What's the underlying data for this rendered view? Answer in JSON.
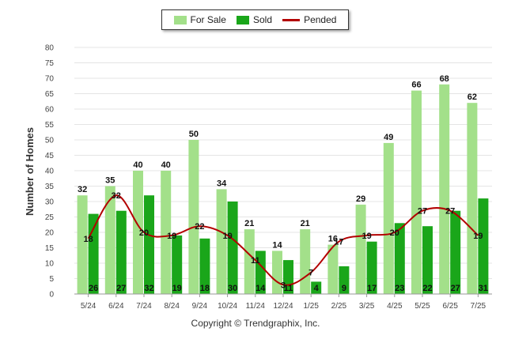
{
  "legend": {
    "items": [
      {
        "label": "For Sale",
        "color": "#a3e08a"
      },
      {
        "label": "Sold",
        "color": "#1aa61a"
      },
      {
        "label": "Pended",
        "color": "#b30000"
      }
    ]
  },
  "copyright": "Copyright © Trendgraphix, Inc.",
  "chart_data": {
    "type": "bar",
    "ylabel": "Number of Homes",
    "xlabel": "",
    "ylim": [
      0,
      80
    ],
    "yticks": [
      0,
      5,
      10,
      15,
      20,
      25,
      30,
      35,
      40,
      45,
      50,
      55,
      60,
      65,
      70,
      75,
      80
    ],
    "grid": true,
    "legend_position": "top-center",
    "categories": [
      "5/24",
      "6/24",
      "7/24",
      "8/24",
      "9/24",
      "10/24",
      "11/24",
      "12/24",
      "1/25",
      "2/25",
      "3/25",
      "4/25",
      "5/25",
      "6/25",
      "7/25"
    ],
    "series": [
      {
        "name": "For Sale",
        "kind": "bar",
        "color": "#a3e08a",
        "values": [
          32,
          35,
          40,
          40,
          50,
          34,
          21,
          14,
          21,
          16,
          29,
          49,
          66,
          68,
          62
        ]
      },
      {
        "name": "Sold",
        "kind": "bar",
        "color": "#1aa61a",
        "values": [
          26,
          27,
          32,
          19,
          18,
          30,
          14,
          11,
          4,
          9,
          17,
          23,
          22,
          27,
          31
        ]
      },
      {
        "name": "Pended",
        "kind": "line",
        "color": "#b30000",
        "values": [
          18,
          32,
          20,
          19,
          22,
          19,
          11,
          3,
          7,
          17,
          19,
          20,
          27,
          27,
          19
        ]
      }
    ]
  }
}
